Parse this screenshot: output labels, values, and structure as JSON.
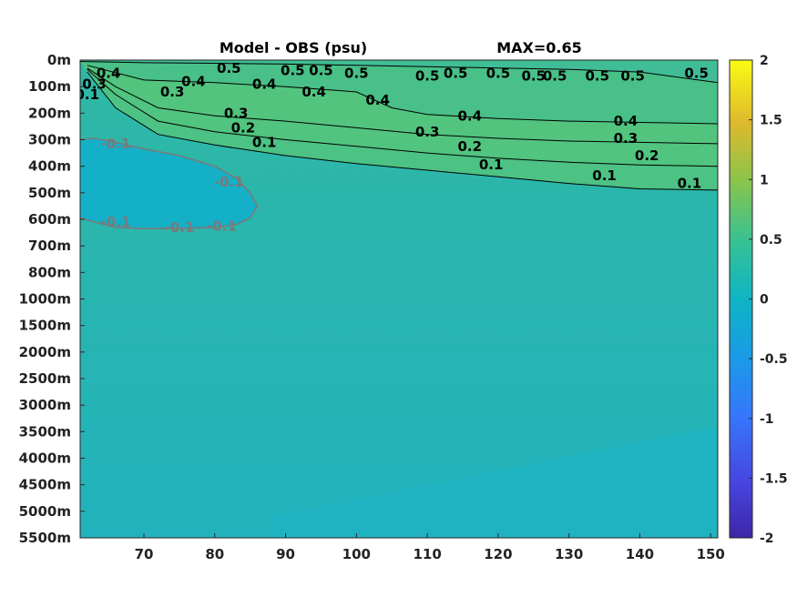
{
  "chart_data": {
    "type": "heatmap",
    "title_left": "Model - OBS (psu)",
    "title_right": "MAX=0.65",
    "x_ticks": [
      70,
      80,
      90,
      100,
      110,
      120,
      130,
      140,
      150
    ],
    "xlim": [
      61,
      151
    ],
    "y_ticks": [
      "0m",
      "100m",
      "200m",
      "300m",
      "400m",
      "500m",
      "600m",
      "700m",
      "800m",
      "1000m",
      "1500m",
      "2000m",
      "2500m",
      "3000m",
      "3500m",
      "4000m",
      "4500m",
      "5000m",
      "5500m"
    ],
    "colorbar": {
      "ticks": [
        2,
        1.5,
        1,
        0.5,
        0,
        -0.5,
        -1,
        -1.5,
        -2
      ],
      "range": [
        -2,
        2
      ]
    },
    "colors": {
      "background": "#2fb2b0",
      "deep": "#1fb3c3",
      "shallow_green": "#47c08a",
      "light_green": "#52c47e",
      "mid_green": "#3fbc9a",
      "negative_blob": "#12afca",
      "positive_contour": "#000000",
      "negative_contour": "#7a7a7a"
    },
    "contours": {
      "positive": [
        {
          "level": "0.5",
          "x": [
            61,
            70,
            80,
            90,
            100,
            110,
            120,
            130,
            140,
            151
          ],
          "y_index": [
            0.05,
            0.1,
            0.12,
            0.15,
            0.2,
            0.25,
            0.3,
            0.35,
            0.45,
            0.85
          ]
        },
        {
          "level": "0.4",
          "x": [
            62,
            70,
            80,
            90,
            100,
            105,
            110,
            120,
            130,
            140,
            151
          ],
          "y_index": [
            0.2,
            0.75,
            0.85,
            1.0,
            1.2,
            1.8,
            2.05,
            2.2,
            2.3,
            2.35,
            2.4
          ]
        },
        {
          "level": "0.3",
          "x": [
            62,
            66,
            72,
            80,
            90,
            100,
            110,
            120,
            130,
            140,
            151
          ],
          "y_index": [
            0.3,
            1.0,
            1.8,
            2.1,
            2.3,
            2.55,
            2.8,
            2.95,
            3.05,
            3.1,
            3.15
          ]
        },
        {
          "level": "0.2",
          "x": [
            62,
            66,
            72,
            80,
            90,
            100,
            110,
            120,
            130,
            140,
            151
          ],
          "y_index": [
            0.35,
            1.3,
            2.3,
            2.7,
            3.0,
            3.25,
            3.5,
            3.7,
            3.85,
            3.95,
            4.0
          ]
        },
        {
          "level": "0.1",
          "x": [
            62,
            66,
            72,
            80,
            90,
            100,
            110,
            120,
            130,
            140,
            151
          ],
          "y_index": [
            0.45,
            1.8,
            2.8,
            3.2,
            3.6,
            3.9,
            4.15,
            4.4,
            4.65,
            4.85,
            4.9
          ]
        }
      ],
      "negative": [
        {
          "level": "-0.1",
          "x": [
            61,
            63,
            66,
            70,
            75,
            80,
            83,
            85,
            86,
            85,
            83,
            80,
            75,
            70,
            66,
            63,
            61
          ],
          "y_index": [
            3.0,
            2.95,
            3.1,
            3.35,
            3.6,
            4.0,
            4.45,
            5.0,
            5.5,
            5.95,
            6.2,
            6.3,
            6.35,
            6.35,
            6.3,
            6.1,
            5.95
          ]
        }
      ],
      "positive_labels": [
        {
          "text": "0.4",
          "x": 65,
          "y_index": 0.5
        },
        {
          "text": "0.3",
          "x": 63,
          "y_index": 0.9
        },
        {
          "text": "0.1",
          "x": 62,
          "y_index": 1.3
        },
        {
          "text": "0.4",
          "x": 77,
          "y_index": 0.8
        },
        {
          "text": "0.3",
          "x": 74,
          "y_index": 1.2
        },
        {
          "text": "0.5",
          "x": 82,
          "y_index": 0.3
        },
        {
          "text": "0.4",
          "x": 87,
          "y_index": 0.9
        },
        {
          "text": "0.5",
          "x": 91,
          "y_index": 0.4
        },
        {
          "text": "0.5",
          "x": 95,
          "y_index": 0.4
        },
        {
          "text": "0.4",
          "x": 94,
          "y_index": 1.2
        },
        {
          "text": "0.5",
          "x": 100,
          "y_index": 0.5
        },
        {
          "text": "0.4",
          "x": 103,
          "y_index": 1.5
        },
        {
          "text": "0.5",
          "x": 110,
          "y_index": 0.6
        },
        {
          "text": "0.5",
          "x": 114,
          "y_index": 0.5
        },
        {
          "text": "0.5",
          "x": 120,
          "y_index": 0.5
        },
        {
          "text": "0.5",
          "x": 125,
          "y_index": 0.6
        },
        {
          "text": "0.5",
          "x": 128,
          "y_index": 0.6
        },
        {
          "text": "0.5",
          "x": 134,
          "y_index": 0.6
        },
        {
          "text": "0.5",
          "x": 139,
          "y_index": 0.6
        },
        {
          "text": "0.5",
          "x": 148,
          "y_index": 0.5
        },
        {
          "text": "0.3",
          "x": 83,
          "y_index": 2.0
        },
        {
          "text": "0.2",
          "x": 84,
          "y_index": 2.55
        },
        {
          "text": "0.1",
          "x": 87,
          "y_index": 3.1
        },
        {
          "text": "0.4",
          "x": 116,
          "y_index": 2.1
        },
        {
          "text": "0.3",
          "x": 110,
          "y_index": 2.7
        },
        {
          "text": "0.2",
          "x": 116,
          "y_index": 3.25
        },
        {
          "text": "0.1",
          "x": 119,
          "y_index": 3.95
        },
        {
          "text": "0.4",
          "x": 138,
          "y_index": 2.3
        },
        {
          "text": "0.3",
          "x": 138,
          "y_index": 2.95
        },
        {
          "text": "0.2",
          "x": 141,
          "y_index": 3.6
        },
        {
          "text": "0.1",
          "x": 135,
          "y_index": 4.35
        },
        {
          "text": "0.1",
          "x": 147,
          "y_index": 4.65
        }
      ],
      "negative_labels": [
        {
          "text": "-0.1",
          "x": 66,
          "y_index": 3.15
        },
        {
          "text": "-0.1",
          "x": 82,
          "y_index": 4.6
        },
        {
          "text": "-0.1",
          "x": 66,
          "y_index": 6.1
        },
        {
          "text": "-0.1",
          "x": 75,
          "y_index": 6.3
        },
        {
          "text": "-0.1",
          "x": 81,
          "y_index": 6.25
        }
      ]
    }
  }
}
